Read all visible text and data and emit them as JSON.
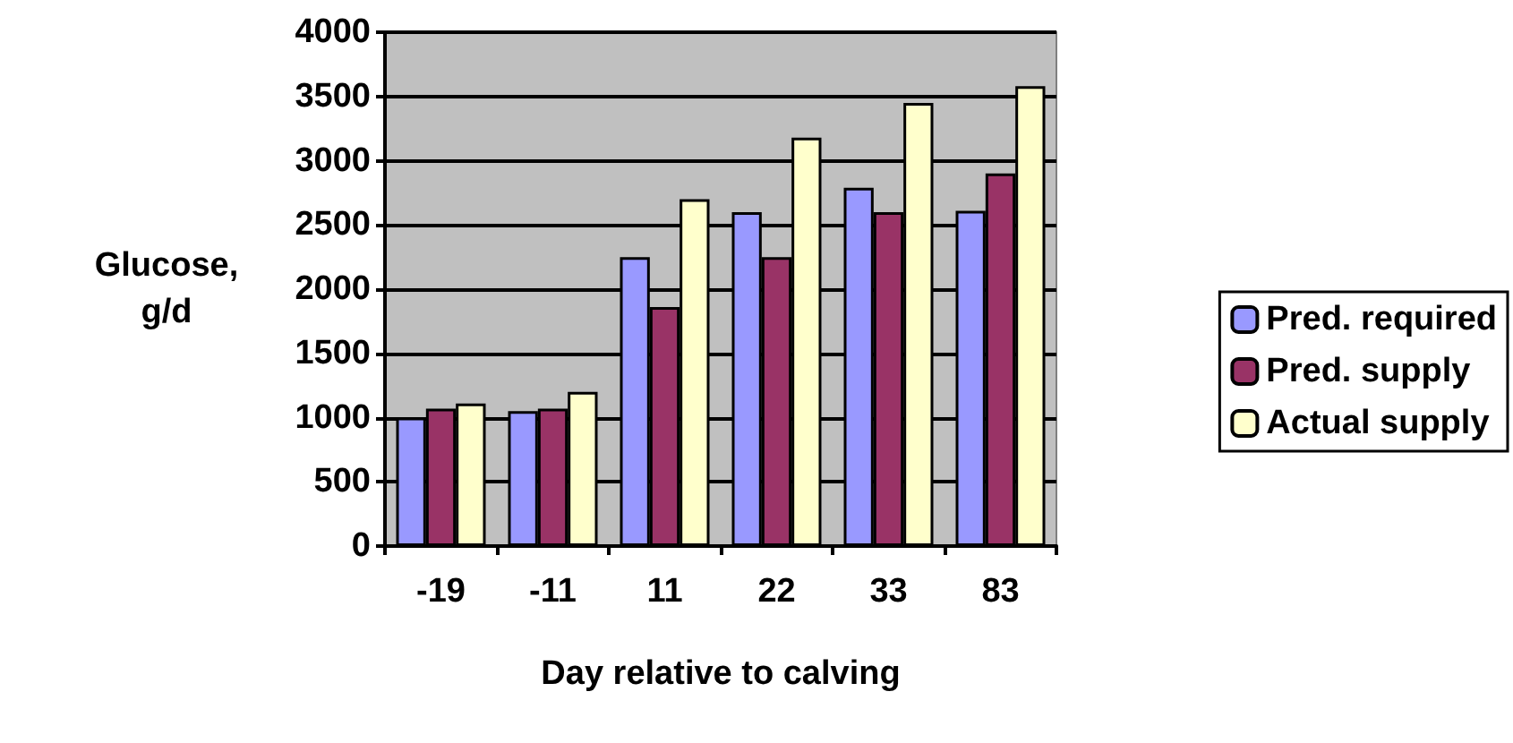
{
  "chart_data": {
    "type": "bar",
    "xlabel": "Day relative to calving",
    "ylabel": "Glucose,\ng/d",
    "categories": [
      "-19",
      "-11",
      "11",
      "22",
      "33",
      "83"
    ],
    "series": [
      {
        "name": "Pred. required",
        "color": "#9999ff",
        "values": [
          1000,
          1050,
          2250,
          2600,
          2790,
          2610
        ]
      },
      {
        "name": "Pred. supply",
        "color": "#993366",
        "values": [
          1070,
          1070,
          1860,
          2250,
          2600,
          2900
        ]
      },
      {
        "name": "Actual supply",
        "color": "#ffffcc",
        "values": [
          1110,
          1200,
          2700,
          3180,
          3450,
          3580
        ]
      }
    ],
    "ylim": [
      0,
      4000
    ],
    "yticks": [
      0,
      500,
      1000,
      1500,
      2000,
      2500,
      3000,
      3500,
      4000
    ],
    "grid": "y",
    "legend": "right"
  }
}
